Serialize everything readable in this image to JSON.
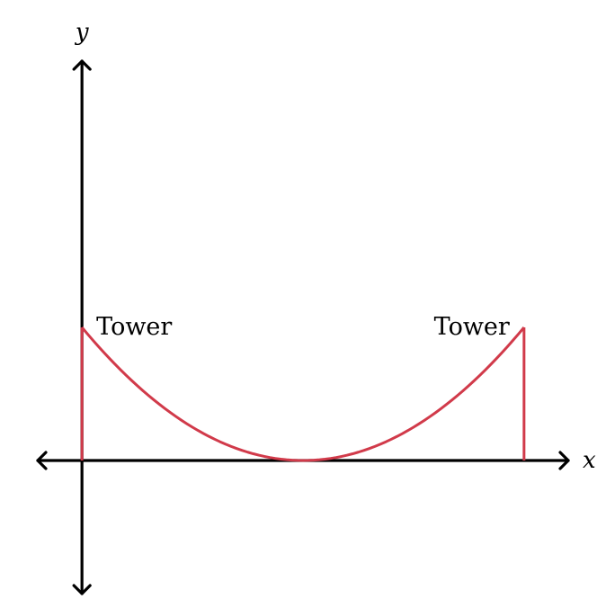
{
  "diagram": {
    "type": "suspension-bridge-parabola",
    "axes": {
      "x_label": "x",
      "y_label": "y"
    },
    "labels": {
      "left_tower": "Tower",
      "right_tower": "Tower"
    },
    "data": {
      "x_range": [
        -1,
        11
      ],
      "y_range": [
        -3,
        9
      ],
      "left_tower": {
        "x": 0,
        "height": 3
      },
      "right_tower": {
        "x": 10,
        "height": 3
      },
      "vertex": {
        "x": 5,
        "y": 0
      }
    },
    "colors": {
      "cable": "#d13a4a",
      "axes": "#000000"
    }
  }
}
